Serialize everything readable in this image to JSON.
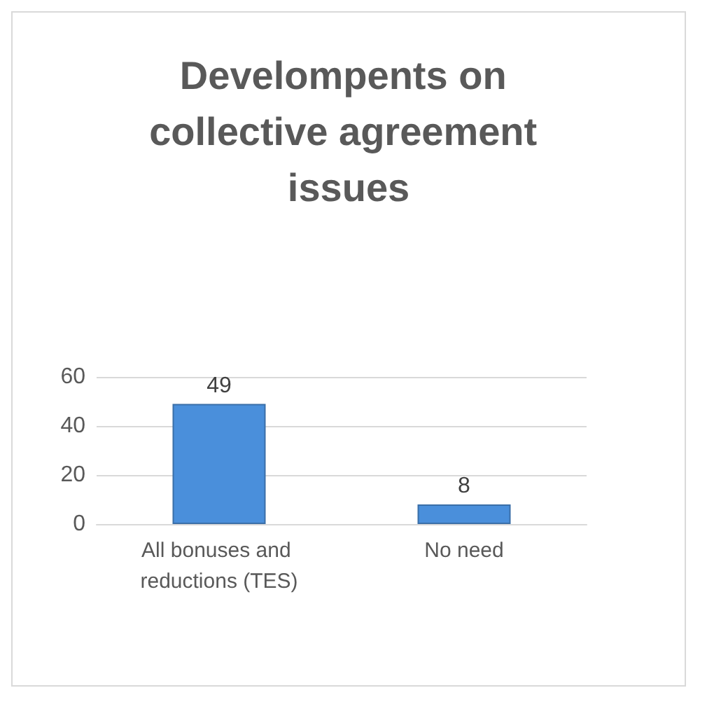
{
  "chart_data": {
    "type": "bar",
    "title": "Develompents on collective agreement issues",
    "categories": [
      "All bonuses and reductions (TES)",
      "No need"
    ],
    "values": [
      49,
      8
    ],
    "color": "#4a8fdb",
    "ylim": [
      0,
      60
    ],
    "yticks": [
      0,
      20,
      40,
      60
    ],
    "grid": "y",
    "data_labels": true
  }
}
